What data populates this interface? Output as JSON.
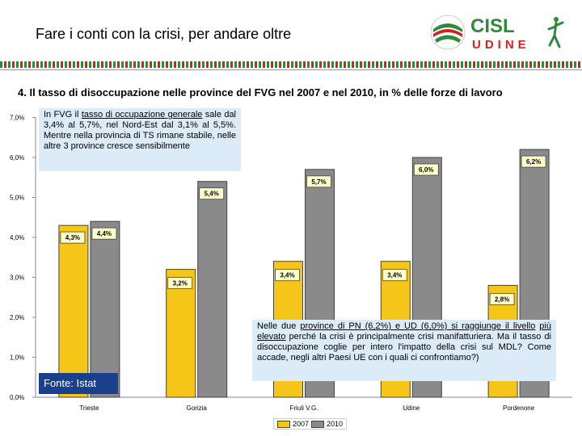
{
  "header": {
    "title": "Fare i conti con la crisi, per andare oltre"
  },
  "logo": {
    "top_text": "CISL",
    "bottom_text": "UDINE"
  },
  "subtitle": "4. Il tasso di disoccupazione nelle province del FVG nel 2007 e nel 2010, in % delle forze di lavoro",
  "note1": {
    "p1": "In FVG il ",
    "u1": "tasso di occupazione generale",
    "p2": " sale dal 3,4% al 5,7%, nel Nord-Est dal 3,1% al 5,5%. Mentre nella provincia di TS rimane stabile, nelle altre 3 province cresce sensibilmente"
  },
  "note2": {
    "p1": "Nelle due ",
    "u1": "province di PN (6,2%) e UD (6,0%) si raggiunge il livello",
    "p2": " ",
    "u2": "più elevato",
    "p3": " perché la crisi è principalmente crisi manifatturiera. Ma il tasso di disoccupazione coglie per intero l'impatto della crisi sul MDL? Come accade, negli altri Paesi UE con i quali ci confrontiamo?)"
  },
  "source": "Fonte: Istat",
  "colors": {
    "y2007": "#f5c518",
    "y2010": "#8a8a8a",
    "label_bg": "#ffffcc"
  },
  "chart_data": {
    "type": "bar",
    "categories": [
      "Trieste",
      "Gorizia",
      "Friuli V.G.",
      "Udine",
      "Pordenone"
    ],
    "series": [
      {
        "name": "2007",
        "values": [
          4.3,
          3.2,
          3.4,
          3.4,
          2.8
        ],
        "labels": [
          "4,3%",
          "3,2%",
          "3,4%",
          "3,4%",
          "2,8%"
        ]
      },
      {
        "name": "2010",
        "values": [
          4.4,
          5.4,
          5.7,
          6.0,
          6.2
        ],
        "labels": [
          "4,4%",
          "5,4%",
          "5,7%",
          "6,0%",
          "6,2%"
        ]
      }
    ],
    "yticks": [
      0,
      1,
      2,
      3,
      4,
      5,
      6,
      7
    ],
    "ytick_labels": [
      "0,0%",
      "1,0%",
      "2,0%",
      "3,0%",
      "4,0%",
      "5,0%",
      "6,0%",
      "7,0%"
    ],
    "ylim": [
      0,
      7
    ],
    "grid": false,
    "legend": "bottom"
  }
}
